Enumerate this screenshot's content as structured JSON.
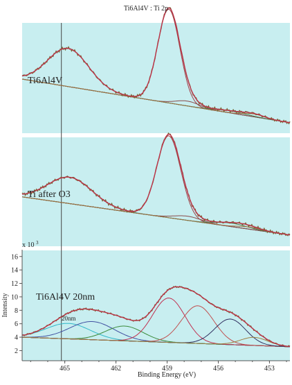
{
  "chart_data": {
    "type": "line",
    "title": "Ti6Al4V : Ti 2p",
    "xlabel": "Binding Energy (eV)",
    "ylabel": "Intensity",
    "y_multiplier": "x 10",
    "y_multiplier_exp": "3",
    "x_ticks": [
      465,
      462,
      459,
      456,
      453
    ],
    "y_ticks": [
      2,
      4,
      6,
      8,
      10,
      12,
      14,
      16
    ],
    "xlim": [
      467.5,
      451.8
    ],
    "ylim": [
      0.5,
      16.8
    ],
    "marker_line_x": 465.2,
    "grid": false,
    "colors": {
      "panel_bg": "#c8eef0",
      "envelope": "#c0304a",
      "data": "#7a6a3a",
      "background_line": "#2e6b2e"
    },
    "panels": [
      {
        "label": "Ti6Al4V",
        "components": [
          {
            "center": 464.8,
            "height": 0.55,
            "width": 1.2,
            "color": "#2fb8c8"
          },
          {
            "center": 458.9,
            "height": 1.35,
            "width": 0.65,
            "color": "#a0404a"
          },
          {
            "center": 457.8,
            "height": 0.07,
            "width": 0.7,
            "color": "#8a4a4a"
          },
          {
            "center": 455.3,
            "height": 0.03,
            "width": 0.9,
            "color": "#4a7a4a"
          },
          {
            "center": 453.9,
            "height": 0.04,
            "width": 0.6,
            "color": "#a07040"
          }
        ]
      },
      {
        "label": "Ti after O3",
        "components": [
          {
            "center": 464.7,
            "height": 0.38,
            "width": 1.3,
            "color": "#2fb8c8"
          },
          {
            "center": 458.9,
            "height": 1.18,
            "width": 0.7,
            "color": "#a0404a"
          },
          {
            "center": 457.8,
            "height": 0.06,
            "width": 0.8,
            "color": "#8a4a4a"
          },
          {
            "center": 455.2,
            "height": 0.05,
            "width": 0.9,
            "color": "#4a7a4a"
          },
          {
            "center": 454.2,
            "height": 0.03,
            "width": 0.7,
            "color": "#a07040"
          }
        ]
      },
      {
        "label": "Ti6Al4V 20nm",
        "annotation": "20nm",
        "components": [
          {
            "center": 464.8,
            "height": 2.3,
            "width": 1.3,
            "color": "#2fb8c8"
          },
          {
            "center": 463.4,
            "height": 2.7,
            "width": 1.3,
            "color": "#4050a0"
          },
          {
            "center": 461.5,
            "height": 2.2,
            "width": 1.1,
            "color": "#3a8a3a"
          },
          {
            "center": 458.9,
            "height": 6.6,
            "width": 0.95,
            "color": "#c03050"
          },
          {
            "center": 457.2,
            "height": 5.6,
            "width": 0.95,
            "color": "#c05050"
          },
          {
            "center": 455.3,
            "height": 3.8,
            "width": 0.9,
            "color": "#303060"
          },
          {
            "center": 453.9,
            "height": 1.2,
            "width": 0.8,
            "color": "#a08040"
          }
        ]
      }
    ]
  }
}
